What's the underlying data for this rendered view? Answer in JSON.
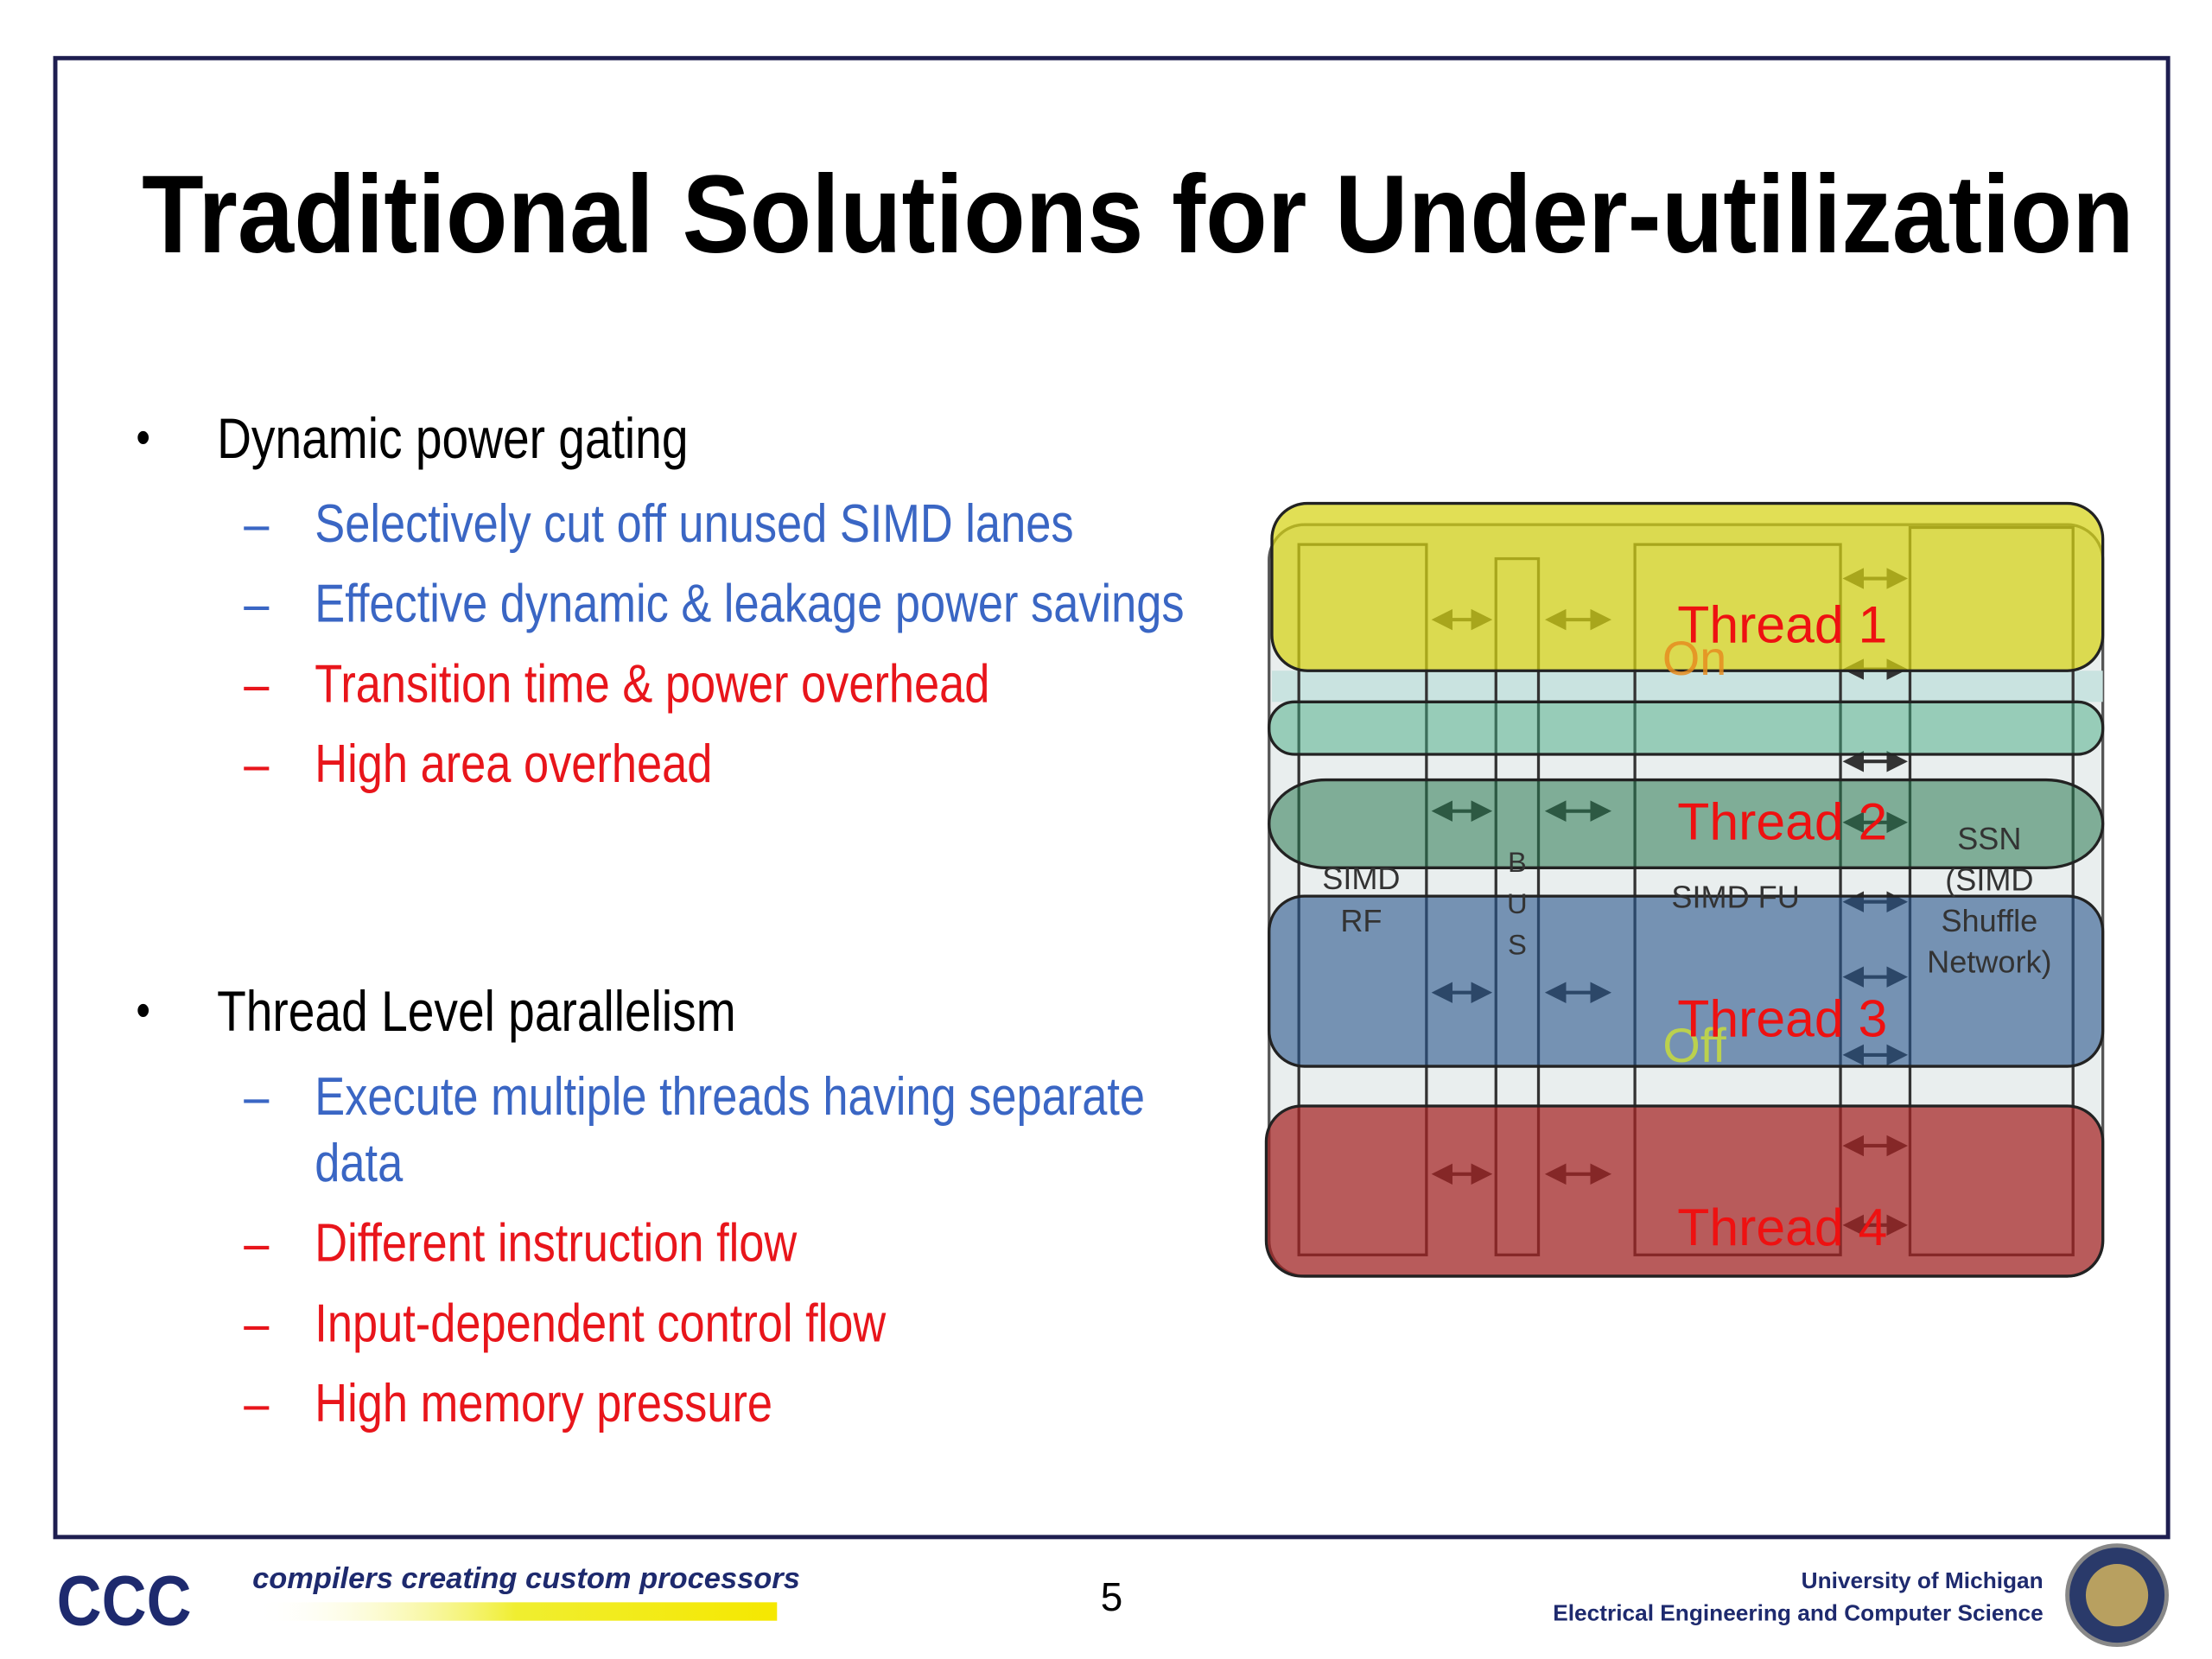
{
  "slide": {
    "title": "Traditional Solutions for Under-utilization",
    "bullets": [
      {
        "text": "Dynamic power gating",
        "subitems": [
          {
            "lines": [
              "Selectively cut off unused SIMD lanes"
            ],
            "color": "#3a66c4"
          },
          {
            "lines": [
              "Effective dynamic & leakage power savings"
            ],
            "color": "#3a66c4"
          },
          {
            "lines": [
              "Transition time & power overhead"
            ],
            "color": "#e8151b"
          },
          {
            "lines": [
              "High area overhead"
            ],
            "color": "#e8151b"
          }
        ]
      },
      {
        "text": "Thread Level parallelism",
        "subitems": [
          {
            "lines": [
              "Execute multiple threads having separate",
              "data"
            ],
            "color": "#3a66c4"
          },
          {
            "lines": [
              "Different instruction flow"
            ],
            "color": "#e8151b"
          },
          {
            "lines": [
              "Input-dependent control flow"
            ],
            "color": "#e8151b"
          },
          {
            "lines": [
              "High memory pressure"
            ],
            "color": "#e8151b"
          }
        ]
      }
    ],
    "diagram": {
      "rf": [
        "SIMD",
        "RF"
      ],
      "bus": [
        "B",
        "U",
        "S"
      ],
      "fu": "SIMD FU",
      "ssn": [
        "SSN",
        "(SIMD",
        "Shuffle",
        "Network)"
      ],
      "threads": [
        "Thread 1",
        "Thread 2",
        "Thread 3",
        "Thread 4"
      ],
      "on": "On",
      "off": "Off"
    },
    "footer": {
      "logo": "CCC",
      "tagline": "compilers creating custom processors",
      "page_number": "5",
      "university": "University of Michigan",
      "department": "Electrical Engineering and Computer Science"
    }
  }
}
